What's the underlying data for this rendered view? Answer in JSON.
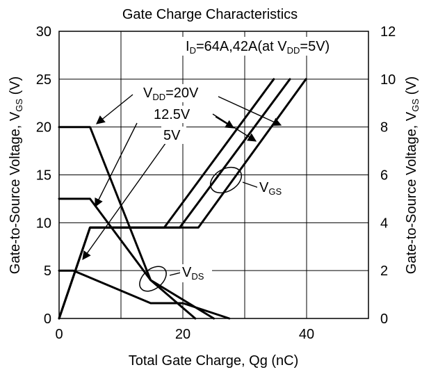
{
  "chart_data": {
    "type": "line",
    "title": "Gate Charge Characteristics",
    "xlabel": "Total Gate Charge, Qg (nC)",
    "ylabel_left": {
      "main": "Gate-to-Source Voltage, V",
      "sub": "GS",
      "unit": " (V)"
    },
    "ylabel_right": {
      "main": "Gate-to-Source Voltage, V",
      "sub": "GS",
      "unit": " (V)"
    },
    "xlim": [
      0,
      50
    ],
    "ylim_left": [
      0,
      30
    ],
    "ylim_right": [
      0,
      12
    ],
    "x_ticks": [
      0,
      20,
      40
    ],
    "y_ticks_left": [
      0,
      5,
      10,
      15,
      20,
      25,
      30
    ],
    "y_ticks_right": [
      0,
      2,
      4,
      6,
      8,
      10,
      12
    ],
    "grid": true,
    "annotations": {
      "conditions": {
        "pre": "I",
        "pre_sub": "D",
        "mid": "=64A,42A(at V",
        "mid_sub": "DD",
        "post": "=5V)"
      },
      "vdd_20": {
        "main": "V",
        "sub": "DD",
        "post": "=20V"
      },
      "vdd_12_5": "12.5V",
      "vdd_5": "5V",
      "vgs_label": {
        "main": "V",
        "sub": "GS"
      },
      "vds_label": {
        "main": "V",
        "sub": "DS"
      }
    },
    "series": [
      {
        "axis": "left",
        "x": [
          0,
          5,
          17,
          34.7
        ],
        "y": [
          0,
          9.5,
          9.5,
          25
        ]
      },
      {
        "axis": "left",
        "x": [
          0,
          5,
          19.5,
          37.3
        ],
        "y": [
          0,
          9.5,
          9.5,
          25
        ]
      },
      {
        "axis": "left",
        "x": [
          0,
          5,
          22.5,
          39.9
        ],
        "y": [
          0,
          9.5,
          9.5,
          25
        ]
      },
      {
        "axis": "left",
        "x": [
          0,
          5,
          14.8,
          22
        ],
        "y": [
          20,
          20,
          4,
          0
        ]
      },
      {
        "axis": "left",
        "x": [
          0,
          5,
          14.8,
          25
        ],
        "y": [
          12.5,
          12.5,
          4,
          0
        ]
      },
      {
        "axis": "left",
        "x": [
          0,
          2.3,
          14.8,
          20,
          27.5
        ],
        "y": [
          5,
          5,
          1.6,
          1.6,
          0
        ]
      }
    ]
  }
}
